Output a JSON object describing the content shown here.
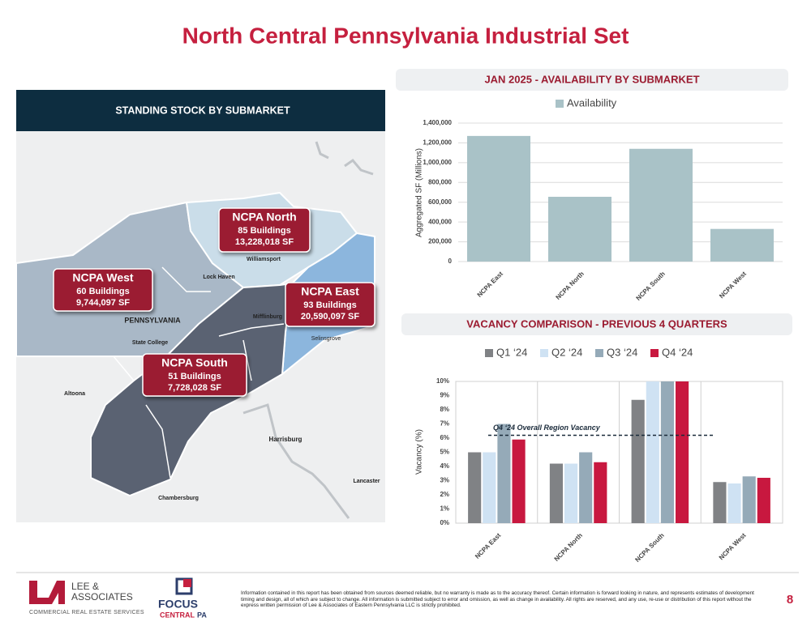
{
  "title": "North Central Pennsylvania Industrial Set",
  "map": {
    "title": "STANDING STOCK BY SUBMARKET",
    "submarkets": [
      {
        "name": "NCPA North",
        "buildings": "85 Buildings",
        "sf": "13,228,018 SF"
      },
      {
        "name": "NCPA West",
        "buildings": "60 Buildings",
        "sf": "9,744,097 SF"
      },
      {
        "name": "NCPA East",
        "buildings": "93 Buildings",
        "sf": "20,590,097 SF"
      },
      {
        "name": "NCPA South",
        "buildings": "51 Buildings",
        "sf": "7,728,028 SF"
      }
    ],
    "places": [
      "Williamsport",
      "Lock Haven",
      "PENNSYLVANIA",
      "State College",
      "Mifflinburg",
      "Selinsgrove",
      "Altoona",
      "Harrisburg",
      "Lancaster",
      "Chambersburg"
    ]
  },
  "chart_data": [
    {
      "type": "bar",
      "title": "JAN 2025 - AVAILABILITY BY SUBMARKET",
      "y_label": "Aggregated SF (Millions)",
      "categories": [
        "NCPA East",
        "NCPA North",
        "NCPA South",
        "NCPA West"
      ],
      "series": [
        {
          "name": "Availability",
          "color": "#a9c2c7",
          "values": [
            1270000,
            655000,
            1140000,
            330000
          ]
        }
      ],
      "ylim": [
        0,
        1400000
      ],
      "yticks": [
        0,
        {
          "value": 200000,
          "label": "200,000"
        },
        {
          "value": 400000,
          "label": "400,000"
        },
        {
          "value": 600000,
          "label": "600,000"
        },
        {
          "value": 800000,
          "label": "800,000"
        },
        {
          "value": 1000000,
          "label": "1,000,000"
        },
        {
          "value": 1200000,
          "label": "1,200,000"
        },
        {
          "value": 1400000,
          "label": "1,400,000"
        }
      ],
      "grid": true
    },
    {
      "type": "bar",
      "title": "VACANCY COMPARISON - PREVIOUS 4 QUARTERS",
      "y_label": "Vacancy (%)",
      "categories": [
        "NCPA East",
        "NCPA North",
        "NCPA South",
        "NCPA West"
      ],
      "series": [
        {
          "name": "Q1 ‘24",
          "color": "#808285",
          "values": [
            5.0,
            4.2,
            8.7,
            2.9
          ]
        },
        {
          "name": "Q2 ‘24",
          "color": "#cfe2f3",
          "values": [
            5.0,
            4.2,
            10,
            2.8
          ]
        },
        {
          "name": "Q3 ‘24",
          "color": "#95aab8",
          "values": [
            7.0,
            5.0,
            10,
            3.3
          ]
        },
        {
          "name": "Q4 ‘24",
          "color": "#c8183f",
          "values": [
            5.9,
            4.3,
            10,
            3.2
          ]
        }
      ],
      "ylim": [
        0,
        10
      ],
      "yticks": [
        {
          "value": 0,
          "label": "0%"
        },
        {
          "value": 1,
          "label": "1%"
        },
        {
          "value": 2,
          "label": "2%"
        },
        {
          "value": 3,
          "label": "3%"
        },
        {
          "value": 4,
          "label": "4%"
        },
        {
          "value": 5,
          "label": "5%"
        },
        {
          "value": 6,
          "label": "6%"
        },
        {
          "value": 7,
          "label": "7%"
        },
        {
          "value": 8,
          "label": "8%"
        },
        {
          "value": 9,
          "label": "9%"
        },
        {
          "value": 10,
          "label": "10%"
        }
      ],
      "reference_line": {
        "value": 6.2,
        "label": "Q4 ‘24 Overall Region Vacancy"
      },
      "grid": false
    }
  ],
  "footer": {
    "lee_line1": "LEE &",
    "lee_line2": "ASSOCIATES",
    "lee_tagline": "COMMERCIAL REAL ESTATE SERVICES",
    "focus_line1": "FOCUS",
    "focus_line2": "CENTRAL",
    "focus_line3": "PA",
    "disclaimer": "Information contained in this report has been obtained from sources deemed reliable, but no warranty is made as to the accuracy thereof.  Certain information is forward looking in nature, and represents estimates of development timing and design, all of which are subject to change.  All information is submitted subject to error and omission, as well as change in availability.  All rights are reserved, and any use, re-use or distribution of this report without the express written permission of Lee & Associates of Eastern Pennsylvania LLC is strictly prohibited.",
    "page": "8"
  }
}
